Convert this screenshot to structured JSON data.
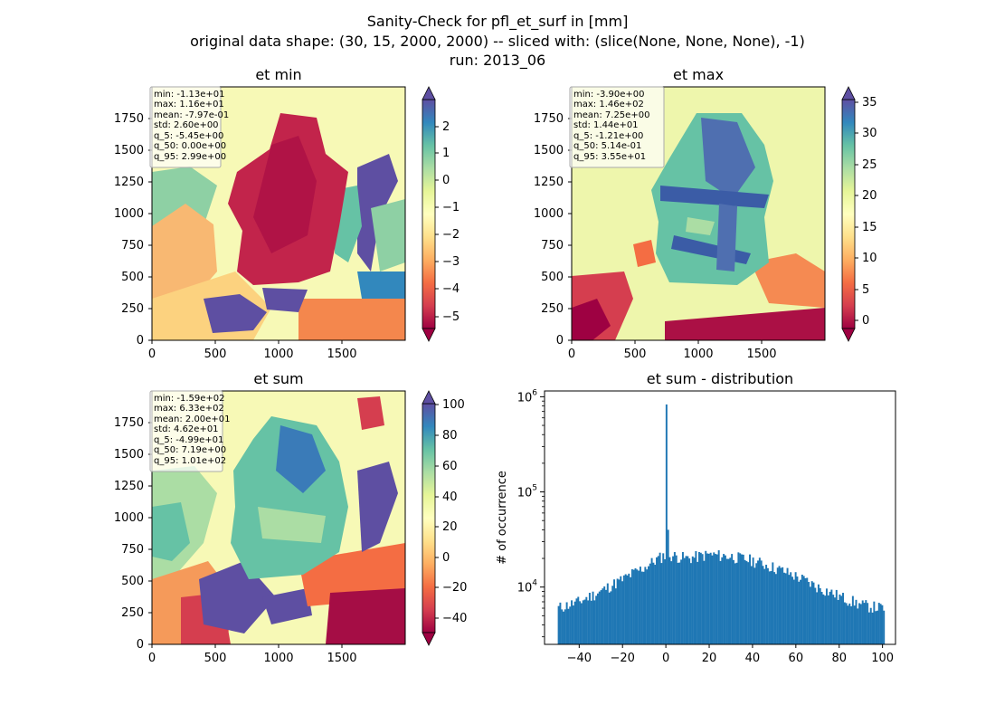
{
  "suptitle": [
    "Sanity-Check for pfl_et_surf in [mm]",
    "original data shape: (30, 15, 2000, 2000) -- sliced with: (slice(None, None, None), -1)",
    "run: 2013_06"
  ],
  "chart_data": [
    {
      "type": "heatmap",
      "title": "et min",
      "x_ticks": [
        "0",
        "500",
        "1000",
        "1500"
      ],
      "y_ticks": [
        "0",
        "250",
        "500",
        "750",
        "1000",
        "1250",
        "1500",
        "1750"
      ],
      "xlim": [
        0,
        2000
      ],
      "ylim": [
        0,
        2000
      ],
      "colormap": "Spectral",
      "colorbar": {
        "range": [
          -5.45,
          2.99
        ],
        "ticks": [
          "2",
          "1",
          "0",
          "−1",
          "−2",
          "−3",
          "−4",
          "−5"
        ],
        "extend": "both"
      },
      "stats": [
        "min: -1.13e+01",
        "max: 1.16e+01",
        "mean: -7.97e-01",
        "std: 2.60e+00",
        "q_5: -5.45e+00",
        "q_50: 0.00e+00",
        "q_95: 2.99e+00"
      ]
    },
    {
      "type": "heatmap",
      "title": "et max",
      "x_ticks": [
        "0",
        "500",
        "1000",
        "1500"
      ],
      "y_ticks": [
        "0",
        "250",
        "500",
        "750",
        "1000",
        "1250",
        "1500",
        "1750"
      ],
      "xlim": [
        0,
        2000
      ],
      "ylim": [
        0,
        2000
      ],
      "colormap": "Spectral",
      "colorbar": {
        "range": [
          -1.21,
          35.5
        ],
        "ticks": [
          "35",
          "30",
          "25",
          "20",
          "15",
          "10",
          "5",
          "0"
        ],
        "extend": "both"
      },
      "stats": [
        "min: -3.90e+00",
        "max: 1.46e+02",
        "mean: 7.25e+00",
        "std: 1.44e+01",
        "q_5: -1.21e+00",
        "q_50: 5.14e-01",
        "q_95: 3.55e+01"
      ]
    },
    {
      "type": "heatmap",
      "title": "et sum",
      "x_ticks": [
        "0",
        "500",
        "1000",
        "1500"
      ],
      "y_ticks": [
        "0",
        "250",
        "500",
        "750",
        "1000",
        "1250",
        "1500",
        "1750"
      ],
      "xlim": [
        0,
        2000
      ],
      "ylim": [
        0,
        2000
      ],
      "colormap": "Spectral",
      "colorbar": {
        "range": [
          -49.9,
          101
        ],
        "ticks": [
          "100",
          "80",
          "60",
          "40",
          "20",
          "0",
          "−20",
          "−40"
        ],
        "extend": "both"
      },
      "stats": [
        "min: -1.59e+02",
        "max: 6.33e+02",
        "mean: 2.00e+01",
        "std: 4.62e+01",
        "q_5: -4.99e+01",
        "q_50: 7.19e+00",
        "q_95: 1.01e+02"
      ]
    },
    {
      "type": "bar",
      "title": "et sum - distribution",
      "xlabel": "",
      "ylabel": "# of occurrence",
      "y_scale": "log",
      "xlim": [
        -56,
        106
      ],
      "ylim": [
        2500,
        1150000
      ],
      "x_ticks": [
        "−40",
        "−20",
        "0",
        "20",
        "40",
        "60",
        "80",
        "100"
      ],
      "y_ticks": [
        "10^4",
        "10^5",
        "10^6"
      ],
      "bar_color": "#1f77b4",
      "bins": {
        "start": -49.9,
        "end": 101,
        "count": 200
      },
      "spike": {
        "x": 0,
        "count": 830000
      },
      "secondary_spike": {
        "x": 0,
        "count": 40000
      },
      "envelope": [
        {
          "x": -50,
          "count": 6000
        },
        {
          "x": -40,
          "count": 7000
        },
        {
          "x": -30,
          "count": 9000
        },
        {
          "x": -20,
          "count": 12000
        },
        {
          "x": -10,
          "count": 16000
        },
        {
          "x": 0,
          "count": 22000
        },
        {
          "x": 10,
          "count": 20000
        },
        {
          "x": 20,
          "count": 22000
        },
        {
          "x": 30,
          "count": 21000
        },
        {
          "x": 40,
          "count": 19000
        },
        {
          "x": 50,
          "count": 16000
        },
        {
          "x": 60,
          "count": 13000
        },
        {
          "x": 70,
          "count": 10000
        },
        {
          "x": 80,
          "count": 8000
        },
        {
          "x": 90,
          "count": 6500
        },
        {
          "x": 100,
          "count": 6000
        }
      ]
    }
  ]
}
